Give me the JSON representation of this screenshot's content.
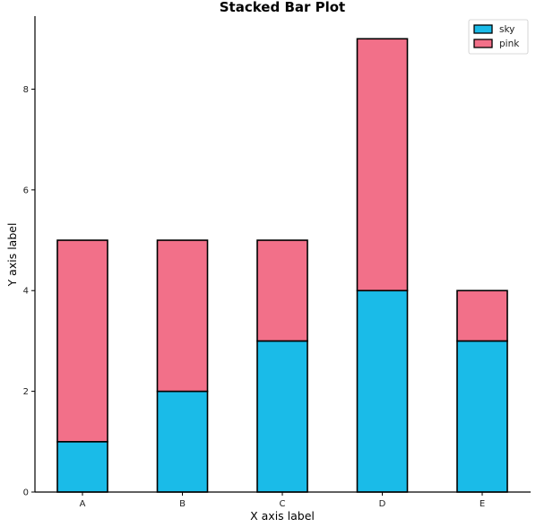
{
  "chart_data": {
    "type": "bar",
    "stacked": true,
    "title": "Stacked Bar Plot",
    "xlabel": "X axis label",
    "ylabel": "Y axis label",
    "categories": [
      "A",
      "B",
      "C",
      "D",
      "E"
    ],
    "series": [
      {
        "name": "sky",
        "color": "#1ABBE8",
        "values": [
          1,
          2,
          3,
          4,
          3
        ]
      },
      {
        "name": "pink",
        "color": "#F27089",
        "values": [
          4,
          3,
          2,
          5,
          1
        ]
      }
    ],
    "ylim": [
      0,
      9.45
    ],
    "yticks": [
      0,
      2,
      4,
      6,
      8
    ],
    "grid": false,
    "legend": "top-right"
  }
}
